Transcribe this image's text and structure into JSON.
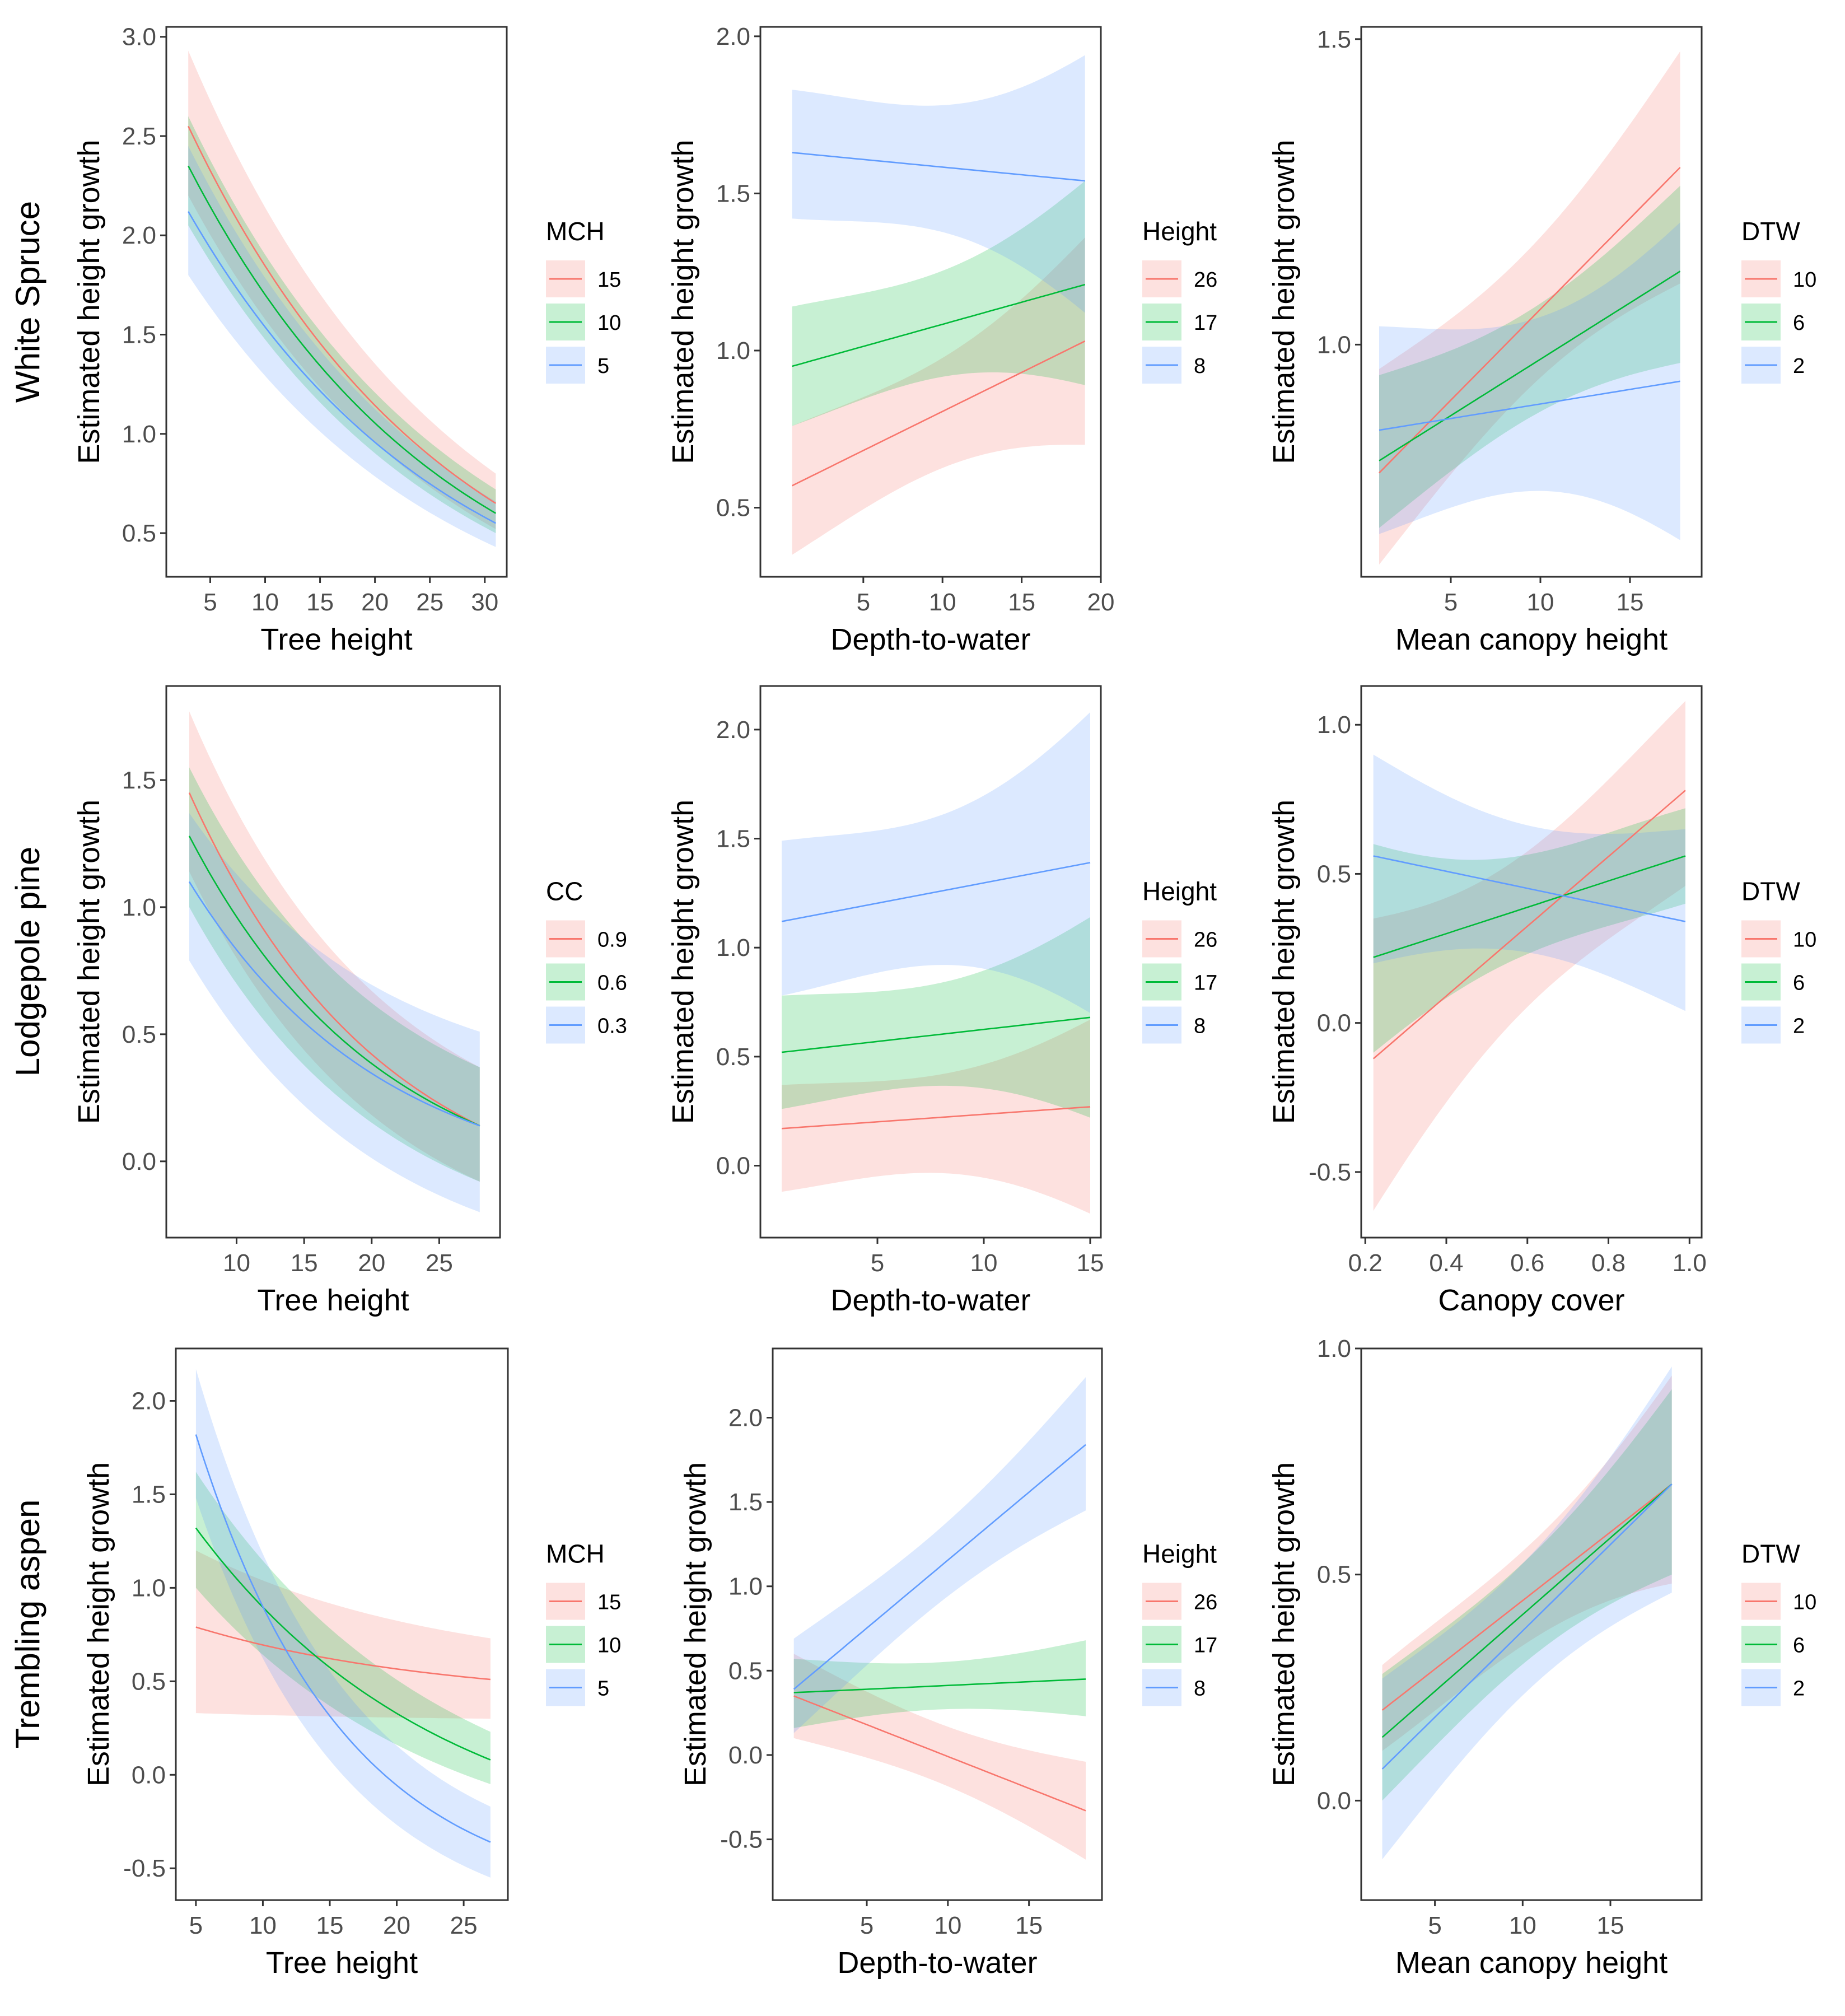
{
  "figure": {
    "rows": [
      "White Spruce",
      "Lodgepole pine",
      "Trembling aspen"
    ],
    "colors": {
      "red": "#F8766D",
      "green": "#00BA38",
      "blue": "#619CFF"
    }
  },
  "chart_data": [
    {
      "id": "ws-tree",
      "type": "line",
      "row_label": "White Spruce",
      "xlabel": "Tree height",
      "ylabel": "Estimated height growth",
      "xlim": [
        1,
        32
      ],
      "ylim": [
        0.28,
        3.05
      ],
      "xticks": [
        "5",
        "10",
        "15",
        "20",
        "25",
        "30"
      ],
      "yticks": [
        "0.5",
        "1.0",
        "1.5",
        "2.0",
        "2.5",
        "3.0"
      ],
      "legend_title": "MCH",
      "series": [
        {
          "name": "15",
          "x": [
            3,
            31
          ],
          "mid": [
            2.55,
            0.65
          ],
          "lo": [
            2.2,
            0.52
          ],
          "hi": [
            2.93,
            0.8
          ],
          "shape": "decay",
          "k": 12
        },
        {
          "name": "10",
          "x": [
            3,
            31
          ],
          "mid": [
            2.35,
            0.6
          ],
          "lo": [
            2.05,
            0.5
          ],
          "hi": [
            2.6,
            0.72
          ],
          "shape": "decay",
          "k": 12
        },
        {
          "name": "5",
          "x": [
            3,
            31
          ],
          "mid": [
            2.12,
            0.55
          ],
          "lo": [
            1.8,
            0.43
          ],
          "hi": [
            2.45,
            0.66
          ],
          "shape": "decay",
          "k": 12
        }
      ]
    },
    {
      "id": "ws-dtw",
      "type": "line",
      "xlabel": "Depth-to-water",
      "ylabel": "Estimated height growth",
      "xlim": [
        -1.5,
        20
      ],
      "ylim": [
        0.28,
        2.03
      ],
      "xticks": [
        "5",
        "10",
        "15",
        "20"
      ],
      "yticks": [
        "0.5",
        "1.0",
        "1.5",
        "2.0"
      ],
      "legend_title": "Height",
      "series": [
        {
          "name": "26",
          "x": [
            0.5,
            19
          ],
          "mid": [
            0.57,
            1.03
          ],
          "lo": [
            0.35,
            0.7
          ],
          "hi": [
            0.76,
            1.36
          ],
          "shape": "bow"
        },
        {
          "name": "17",
          "x": [
            0.5,
            19
          ],
          "mid": [
            0.95,
            1.21
          ],
          "lo": [
            0.76,
            0.89
          ],
          "hi": [
            1.14,
            1.54
          ],
          "shape": "bow"
        },
        {
          "name": "8",
          "x": [
            0.5,
            19
          ],
          "mid": [
            1.63,
            1.54
          ],
          "lo": [
            1.42,
            1.12
          ],
          "hi": [
            1.83,
            1.94
          ],
          "shape": "bow"
        }
      ]
    },
    {
      "id": "ws-mch",
      "type": "line",
      "xlabel": "Mean canopy height",
      "ylabel": "Estimated height growth",
      "xlim": [
        0,
        19
      ],
      "ylim": [
        0.62,
        1.52
      ],
      "xticks": [
        "5",
        "10",
        "15"
      ],
      "yticks": [
        "1.0",
        "1.5"
      ],
      "legend_title": "DTW",
      "series": [
        {
          "name": "10",
          "x": [
            1,
            17.8
          ],
          "mid": [
            0.79,
            1.29
          ],
          "lo": [
            0.64,
            1.1
          ],
          "hi": [
            0.96,
            1.48
          ],
          "shape": "bow"
        },
        {
          "name": "6",
          "x": [
            1,
            17.8
          ],
          "mid": [
            0.81,
            1.12
          ],
          "lo": [
            0.7,
            0.97
          ],
          "hi": [
            0.95,
            1.26
          ],
          "shape": "bow"
        },
        {
          "name": "2",
          "x": [
            1,
            17.8
          ],
          "mid": [
            0.86,
            0.94
          ],
          "lo": [
            0.69,
            0.68
          ],
          "hi": [
            1.03,
            1.2
          ],
          "shape": "bow"
        }
      ]
    },
    {
      "id": "lp-tree",
      "type": "line",
      "row_label": "Lodgepole pine",
      "xlabel": "Tree height",
      "ylabel": "Estimated height growth",
      "xlim": [
        4.8,
        29.5
      ],
      "ylim": [
        -0.3,
        1.87
      ],
      "xticks": [
        "10",
        "15",
        "20",
        "25"
      ],
      "yticks": [
        "0.0",
        "0.5",
        "1.0",
        "1.5"
      ],
      "legend_title": "CC",
      "series": [
        {
          "name": "0.9",
          "x": [
            6.5,
            28
          ],
          "mid": [
            1.45,
            0.14
          ],
          "lo": [
            1.14,
            -0.08
          ],
          "hi": [
            1.77,
            0.37
          ],
          "shape": "decay",
          "k": 15
        },
        {
          "name": "0.6",
          "x": [
            6.5,
            28
          ],
          "mid": [
            1.28,
            0.14
          ],
          "lo": [
            1.0,
            -0.08
          ],
          "hi": [
            1.55,
            0.37
          ],
          "shape": "decay",
          "k": 15
        },
        {
          "name": "0.3",
          "x": [
            6.5,
            28
          ],
          "mid": [
            1.1,
            0.14
          ],
          "lo": [
            0.79,
            -0.2
          ],
          "hi": [
            1.37,
            0.51
          ],
          "shape": "decay",
          "k": 15
        }
      ]
    },
    {
      "id": "lp-dtw",
      "type": "line",
      "xlabel": "Depth-to-water",
      "ylabel": "Estimated height growth",
      "xlim": [
        -0.5,
        15.5
      ],
      "ylim": [
        -0.33,
        2.2
      ],
      "xticks": [
        "5",
        "10",
        "15"
      ],
      "yticks": [
        "0.0",
        "0.5",
        "1.0",
        "1.5",
        "2.0"
      ],
      "legend_title": "Height",
      "series": [
        {
          "name": "26",
          "x": [
            0.5,
            15
          ],
          "mid": [
            0.17,
            0.27
          ],
          "lo": [
            -0.12,
            -0.22
          ],
          "hi": [
            0.37,
            0.67
          ],
          "shape": "bow"
        },
        {
          "name": "17",
          "x": [
            0.5,
            15
          ],
          "mid": [
            0.52,
            0.68
          ],
          "lo": [
            0.26,
            0.22
          ],
          "hi": [
            0.78,
            1.14
          ],
          "shape": "bow"
        },
        {
          "name": "8",
          "x": [
            0.5,
            15
          ],
          "mid": [
            1.12,
            1.39
          ],
          "lo": [
            0.78,
            0.7
          ],
          "hi": [
            1.49,
            2.08
          ],
          "shape": "bow"
        }
      ]
    },
    {
      "id": "lp-cc",
      "type": "line",
      "xlabel": "Canopy cover",
      "ylabel": "Estimated height growth",
      "xlim": [
        0.19,
        1.03
      ],
      "ylim": [
        -0.72,
        1.13
      ],
      "xticks": [
        "0.2",
        "0.4",
        "0.6",
        "0.8",
        "1.0"
      ],
      "yticks": [
        "-0.5",
        "0.0",
        "0.5",
        "1.0"
      ],
      "legend_title": "DTW",
      "series": [
        {
          "name": "10",
          "x": [
            0.22,
            0.99
          ],
          "mid": [
            -0.12,
            0.78
          ],
          "lo": [
            -0.63,
            0.46
          ],
          "hi": [
            0.35,
            1.08
          ],
          "shape": "bow"
        },
        {
          "name": "6",
          "x": [
            0.22,
            0.99
          ],
          "mid": [
            0.22,
            0.56
          ],
          "lo": [
            -0.1,
            0.4
          ],
          "hi": [
            0.6,
            0.72
          ],
          "shape": "bow"
        },
        {
          "name": "2",
          "x": [
            0.22,
            0.99
          ],
          "mid": [
            0.56,
            0.34
          ],
          "lo": [
            0.2,
            0.04
          ],
          "hi": [
            0.9,
            0.65
          ],
          "shape": "bow"
        }
      ]
    },
    {
      "id": "ta-tree",
      "type": "line",
      "row_label": "Trembling aspen",
      "xlabel": "Tree height",
      "ylabel": "Estimated height growth",
      "xlim": [
        3.5,
        28.3
      ],
      "ylim": [
        -0.67,
        2.28
      ],
      "xticks": [
        "5",
        "10",
        "15",
        "20",
        "25"
      ],
      "yticks": [
        "-0.5",
        "0.0",
        "0.5",
        "1.0",
        "1.5",
        "2.0"
      ],
      "legend_title": "MCH",
      "series": [
        {
          "name": "15",
          "x": [
            5,
            27
          ],
          "mid": [
            0.79,
            0.51
          ],
          "lo": [
            0.33,
            0.3
          ],
          "hi": [
            1.2,
            0.73
          ],
          "shape": "decay",
          "k": 12
        },
        {
          "name": "10",
          "x": [
            5,
            27
          ],
          "mid": [
            1.32,
            0.08
          ],
          "lo": [
            1.0,
            -0.05
          ],
          "hi": [
            1.62,
            0.23
          ],
          "shape": "decay",
          "k": 12
        },
        {
          "name": "5",
          "x": [
            5,
            27
          ],
          "mid": [
            1.82,
            -0.36
          ],
          "lo": [
            1.48,
            -0.55
          ],
          "hi": [
            2.17,
            -0.17
          ],
          "shape": "decay",
          "k": 20
        }
      ]
    },
    {
      "id": "ta-dtw",
      "type": "line",
      "xlabel": "Depth-to-water",
      "ylabel": "Estimated height growth",
      "xlim": [
        -0.8,
        19.5
      ],
      "ylim": [
        -0.86,
        2.41
      ],
      "xticks": [
        "5",
        "10",
        "15"
      ],
      "yticks": [
        "-0.5",
        "0.0",
        "0.5",
        "1.0",
        "1.5",
        "2.0"
      ],
      "legend_title": "Height",
      "series": [
        {
          "name": "26",
          "x": [
            0.5,
            18.5
          ],
          "mid": [
            0.35,
            -0.33
          ],
          "lo": [
            0.1,
            -0.62
          ],
          "hi": [
            0.6,
            -0.04
          ],
          "shape": "bow"
        },
        {
          "name": "17",
          "x": [
            0.5,
            18.5
          ],
          "mid": [
            0.37,
            0.45
          ],
          "lo": [
            0.16,
            0.23
          ],
          "hi": [
            0.57,
            0.68
          ],
          "shape": "bow"
        },
        {
          "name": "8",
          "x": [
            0.5,
            18.5
          ],
          "mid": [
            0.39,
            1.84
          ],
          "lo": [
            0.13,
            1.45
          ],
          "hi": [
            0.69,
            2.24
          ],
          "shape": "bow"
        }
      ]
    },
    {
      "id": "ta-mch",
      "type": "line",
      "xlabel": "Mean canopy height",
      "ylabel": "Estimated height growth",
      "xlim": [
        0.8,
        20.2
      ],
      "ylim": [
        -0.22,
        1.0
      ],
      "xticks": [
        "5",
        "10",
        "15"
      ],
      "yticks": [
        "0.0",
        "0.5",
        "1.0"
      ],
      "legend_title": "DTW",
      "series": [
        {
          "name": "10",
          "x": [
            2,
            18.5
          ],
          "mid": [
            0.2,
            0.7
          ],
          "lo": [
            0.11,
            0.48
          ],
          "hi": [
            0.3,
            0.94
          ],
          "shape": "bow"
        },
        {
          "name": "6",
          "x": [
            2,
            18.5
          ],
          "mid": [
            0.14,
            0.7
          ],
          "lo": [
            0.0,
            0.5
          ],
          "hi": [
            0.28,
            0.91
          ],
          "shape": "bow"
        },
        {
          "name": "2",
          "x": [
            2,
            18.5
          ],
          "mid": [
            0.07,
            0.7
          ],
          "lo": [
            -0.13,
            0.46
          ],
          "hi": [
            0.27,
            0.96
          ],
          "shape": "bow"
        }
      ]
    }
  ]
}
